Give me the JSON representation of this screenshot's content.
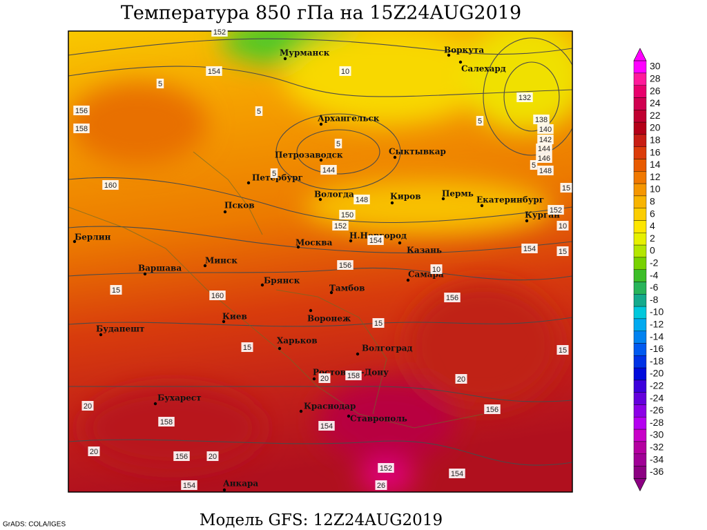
{
  "title": "Температура 850 гПа на 15Z24AUG2019",
  "caption": "Модель GFS: 12Z24AUG2019",
  "credit": "GrADS: COLA/IGES",
  "cities": [
    "Мурманск",
    "Воркута",
    "Салехард",
    "Архангельск",
    "Петрозаводск",
    "Сыктывкар",
    "Петербург",
    "Вологда",
    "Киров",
    "Пермь",
    "Екатеринбург",
    "Курган",
    "Псков",
    "Берлин",
    "Москва",
    "Н.Новгород",
    "Казань",
    "Минск",
    "Варшава",
    "Самара",
    "Брянск",
    "Тамбов",
    "Киев",
    "Воронеж",
    "Будапешт",
    "Харьков",
    "Волгоград",
    "Ростов-на-Дону",
    "Бухарест",
    "Краснодар",
    "Ставрополь",
    "Анкара"
  ],
  "isoline_labels": [
    152,
    154,
    5,
    156,
    158,
    5,
    5,
    144,
    5,
    160,
    148,
    150,
    152,
    154,
    156,
    10,
    156,
    15,
    160,
    15,
    15,
    20,
    158,
    20,
    156,
    20,
    158,
    154,
    20,
    156,
    20,
    152,
    154,
    154,
    132,
    138,
    140,
    142,
    144,
    146,
    148,
    5,
    5,
    15,
    152,
    10,
    154,
    15,
    15,
    10,
    26
  ],
  "colorbar": {
    "labels": [
      30,
      28,
      26,
      24,
      22,
      20,
      18,
      16,
      14,
      12,
      10,
      8,
      6,
      4,
      2,
      0,
      -2,
      -4,
      -6,
      -8,
      -10,
      -12,
      -14,
      -16,
      -18,
      -20,
      -22,
      -24,
      -26,
      -28,
      -30,
      -32,
      -34,
      -36
    ],
    "colors": [
      "#ff00ff",
      "#ff1a9a",
      "#e8006c",
      "#d00050",
      "#c00030",
      "#b40018",
      "#c81e14",
      "#dc3c0a",
      "#e85a00",
      "#f07800",
      "#f59600",
      "#f8b400",
      "#fbcd00",
      "#fde600",
      "#e6f000",
      "#b4e600",
      "#78d200",
      "#3cbe28",
      "#28b45a",
      "#14aa8c",
      "#00c8dc",
      "#00aaf0",
      "#0082f0",
      "#005af0",
      "#0032e6",
      "#000adc",
      "#3c00dc",
      "#6400dc",
      "#8c00e6",
      "#b400f0",
      "#c800c8",
      "#b400a0",
      "#a00096",
      "#8c0082"
    ]
  }
}
